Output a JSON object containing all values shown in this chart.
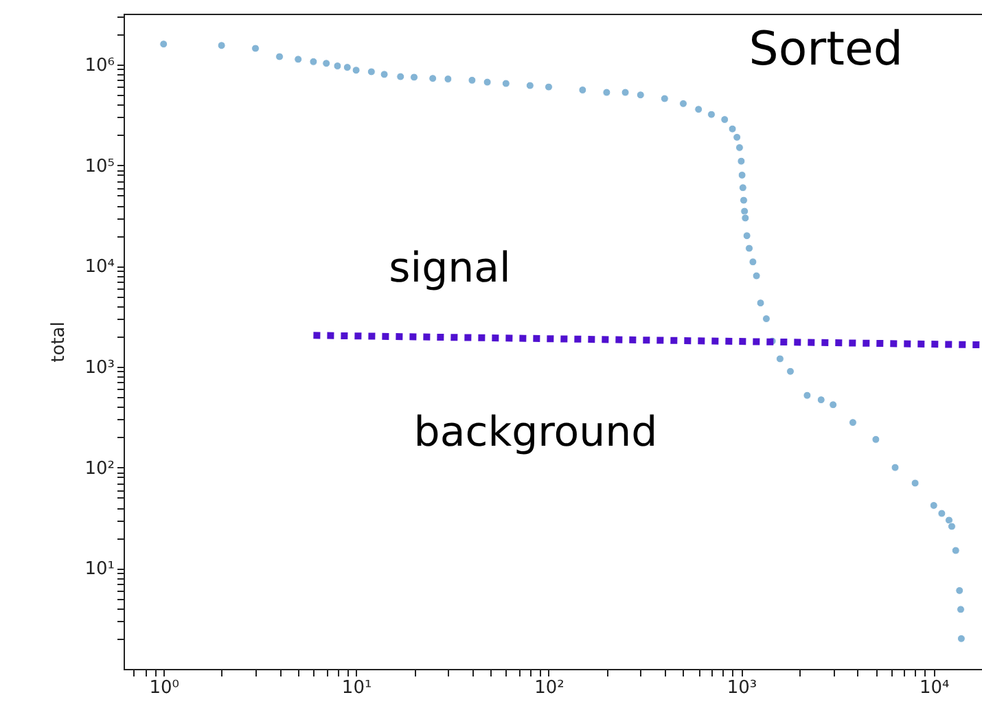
{
  "chart_data": {
    "type": "scatter",
    "title": "Sorted",
    "ylabel": "total",
    "log": "xy",
    "grid": false,
    "xlim": [
      0.62,
      17800
    ],
    "ylim": [
      1,
      3200000
    ],
    "xticks": [
      {
        "value": 0.7,
        "label": null
      },
      {
        "value": 0.8,
        "label": null
      },
      {
        "value": 0.9,
        "label": null
      },
      {
        "value": 1,
        "label": "10⁰"
      },
      {
        "value": 2,
        "label": null
      },
      {
        "value": 3,
        "label": null
      },
      {
        "value": 4,
        "label": null
      },
      {
        "value": 5,
        "label": null
      },
      {
        "value": 6,
        "label": null
      },
      {
        "value": 7,
        "label": null
      },
      {
        "value": 8,
        "label": null
      },
      {
        "value": 9,
        "label": null
      },
      {
        "value": 10,
        "label": "10¹"
      },
      {
        "value": 20,
        "label": null
      },
      {
        "value": 30,
        "label": null
      },
      {
        "value": 40,
        "label": null
      },
      {
        "value": 50,
        "label": null
      },
      {
        "value": 60,
        "label": null
      },
      {
        "value": 70,
        "label": null
      },
      {
        "value": 80,
        "label": null
      },
      {
        "value": 90,
        "label": null
      },
      {
        "value": 100,
        "label": "10²"
      },
      {
        "value": 200,
        "label": null
      },
      {
        "value": 300,
        "label": null
      },
      {
        "value": 400,
        "label": null
      },
      {
        "value": 500,
        "label": null
      },
      {
        "value": 600,
        "label": null
      },
      {
        "value": 700,
        "label": null
      },
      {
        "value": 800,
        "label": null
      },
      {
        "value": 900,
        "label": null
      },
      {
        "value": 1000,
        "label": "10³"
      },
      {
        "value": 2000,
        "label": null
      },
      {
        "value": 3000,
        "label": null
      },
      {
        "value": 4000,
        "label": null
      },
      {
        "value": 5000,
        "label": null
      },
      {
        "value": 6000,
        "label": null
      },
      {
        "value": 7000,
        "label": null
      },
      {
        "value": 8000,
        "label": null
      },
      {
        "value": 9000,
        "label": null
      },
      {
        "value": 10000,
        "label": "10⁴"
      }
    ],
    "yticks": [
      {
        "value": 2,
        "label": null
      },
      {
        "value": 3,
        "label": null
      },
      {
        "value": 4,
        "label": null
      },
      {
        "value": 5,
        "label": null
      },
      {
        "value": 6,
        "label": null
      },
      {
        "value": 7,
        "label": null
      },
      {
        "value": 8,
        "label": null
      },
      {
        "value": 9,
        "label": null
      },
      {
        "value": 10,
        "label": "10¹"
      },
      {
        "value": 20,
        "label": null
      },
      {
        "value": 30,
        "label": null
      },
      {
        "value": 40,
        "label": null
      },
      {
        "value": 50,
        "label": null
      },
      {
        "value": 60,
        "label": null
      },
      {
        "value": 70,
        "label": null
      },
      {
        "value": 80,
        "label": null
      },
      {
        "value": 90,
        "label": null
      },
      {
        "value": 100,
        "label": "10²"
      },
      {
        "value": 200,
        "label": null
      },
      {
        "value": 300,
        "label": null
      },
      {
        "value": 400,
        "label": null
      },
      {
        "value": 500,
        "label": null
      },
      {
        "value": 600,
        "label": null
      },
      {
        "value": 700,
        "label": null
      },
      {
        "value": 800,
        "label": null
      },
      {
        "value": 900,
        "label": null
      },
      {
        "value": 1000,
        "label": "10³"
      },
      {
        "value": 2000,
        "label": null
      },
      {
        "value": 3000,
        "label": null
      },
      {
        "value": 4000,
        "label": null
      },
      {
        "value": 5000,
        "label": null
      },
      {
        "value": 6000,
        "label": null
      },
      {
        "value": 7000,
        "label": null
      },
      {
        "value": 8000,
        "label": null
      },
      {
        "value": 9000,
        "label": null
      },
      {
        "value": 10000,
        "label": "10⁴"
      },
      {
        "value": 20000,
        "label": null
      },
      {
        "value": 30000,
        "label": null
      },
      {
        "value": 40000,
        "label": null
      },
      {
        "value": 50000,
        "label": null
      },
      {
        "value": 60000,
        "label": null
      },
      {
        "value": 70000,
        "label": null
      },
      {
        "value": 80000,
        "label": null
      },
      {
        "value": 90000,
        "label": null
      },
      {
        "value": 100000,
        "label": "10⁵"
      },
      {
        "value": 200000,
        "label": null
      },
      {
        "value": 300000,
        "label": null
      },
      {
        "value": 400000,
        "label": null
      },
      {
        "value": 500000,
        "label": null
      },
      {
        "value": 600000,
        "label": null
      },
      {
        "value": 700000,
        "label": null
      },
      {
        "value": 800000,
        "label": null
      },
      {
        "value": 900000,
        "label": null
      },
      {
        "value": 1000000,
        "label": "10⁶"
      },
      {
        "value": 2000000,
        "label": null
      },
      {
        "value": 3000000,
        "label": null
      }
    ],
    "series": [
      {
        "color": "#1f77b4",
        "marker": "circle",
        "x": [
          1,
          2,
          3,
          4,
          5,
          6,
          7,
          8,
          9,
          10,
          12,
          14,
          17,
          20,
          25,
          30,
          40,
          48,
          60,
          80,
          100,
          150,
          200,
          250,
          300,
          400,
          500,
          600,
          700,
          820,
          900,
          950,
          980,
          1000,
          1010,
          1020,
          1030,
          1040,
          1050,
          1070,
          1100,
          1150,
          1200,
          1260,
          1350,
          1450,
          1590,
          1800,
          2200,
          2600,
          3000,
          3800,
          5000,
          6300,
          8000,
          10000,
          11000,
          12000,
          12400,
          13000,
          13600,
          13800,
          13900
        ],
        "values": [
          1600000,
          1550000,
          1450000,
          1200000,
          1130000,
          1070000,
          1030000,
          970000,
          940000,
          880000,
          850000,
          800000,
          760000,
          750000,
          730000,
          720000,
          700000,
          670000,
          650000,
          620000,
          600000,
          560000,
          530000,
          530000,
          500000,
          460000,
          410000,
          360000,
          320000,
          285000,
          230000,
          190000,
          150000,
          110000,
          80000,
          60000,
          45000,
          35000,
          30000,
          20000,
          15000,
          11000,
          8000,
          4300,
          3000,
          1800,
          1200,
          900,
          520,
          470,
          420,
          280,
          190,
          100,
          70,
          42,
          35,
          30,
          26,
          15,
          6,
          3.9,
          2
        ]
      },
      {
        "type": "line",
        "color": "#5010d0",
        "line_style": "dotted",
        "x": [
          6,
          17800
        ],
        "values": [
          2050,
          1650
        ]
      }
    ],
    "annotations": [
      "signal",
      "background"
    ]
  }
}
